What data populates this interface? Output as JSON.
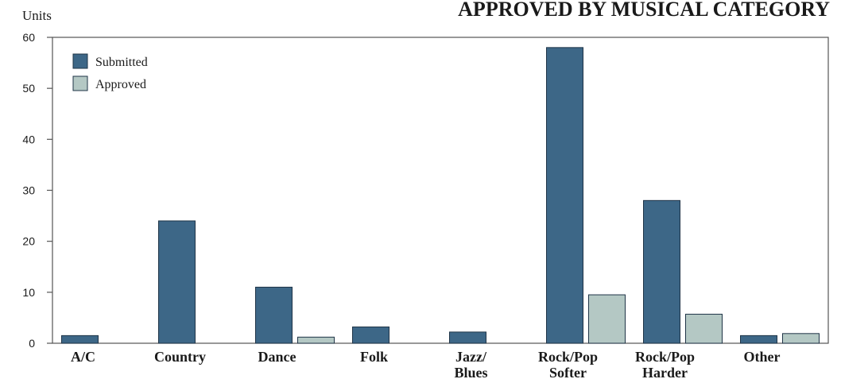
{
  "chart_data": {
    "type": "bar",
    "title": "APPROVED BY MUSICAL CATEGORY",
    "ylabel": "Units",
    "xlabel": "",
    "ylim": [
      0,
      60
    ],
    "yticks": [
      0,
      10,
      20,
      30,
      40,
      50,
      60
    ],
    "grid": false,
    "legend_position": "top-left",
    "categories": [
      [
        "A/C"
      ],
      [
        "Country"
      ],
      [
        "Dance"
      ],
      [
        "Folk"
      ],
      [
        "Jazz/",
        "Blues"
      ],
      [
        "Rock/Pop",
        "Softer"
      ],
      [
        "Rock/Pop",
        "Harder"
      ],
      [
        "Other"
      ]
    ],
    "series": [
      {
        "name": "Submitted",
        "color": "#3d6787",
        "values": [
          1.5,
          24,
          11,
          3.2,
          2.2,
          58,
          28,
          1.5
        ]
      },
      {
        "name": "Approved",
        "color": "#b4c8c4",
        "values": [
          null,
          null,
          1.2,
          null,
          null,
          9.5,
          5.7,
          1.9
        ]
      }
    ]
  }
}
